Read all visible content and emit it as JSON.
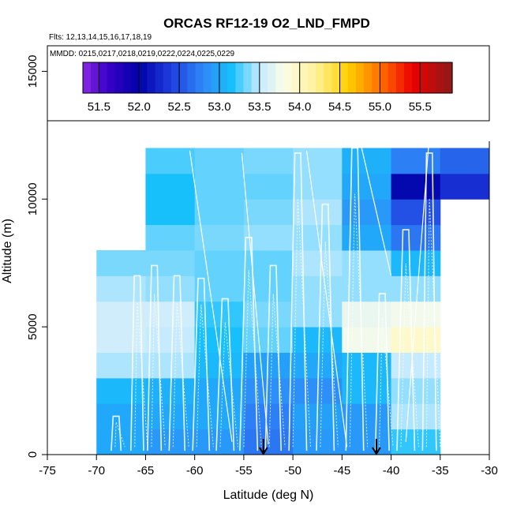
{
  "chart_data": {
    "type": "heatmap",
    "title": "ORCAS RF12-19 O2_LND_FMPD",
    "flights_note": "Flts: 12,13,14,15,16,17,18,19",
    "dates_note": "MMDD: 0215,0217,0218,0219,0222,0224,0225,0229",
    "xlabel": "Latitude (deg N)",
    "ylabel": "Altitude (m)",
    "xlim": [
      -75,
      -30
    ],
    "ylim": [
      0,
      16000
    ],
    "x_ticks": [
      -75,
      -70,
      -65,
      -60,
      -55,
      -50,
      -45,
      -40,
      -35,
      -30
    ],
    "y_ticks": [
      0,
      5000,
      10000,
      15000
    ],
    "grid": false,
    "colorbar": {
      "min": 51.3,
      "max": 55.9,
      "ticks": [
        51.5,
        52.0,
        52.5,
        53.0,
        53.5,
        54.0,
        54.5,
        55.0,
        55.5
      ],
      "tick_labels": [
        "51.5",
        "52.0",
        "52.5",
        "53.0",
        "53.5",
        "54.0",
        "54.5",
        "55.0",
        "55.5"
      ],
      "stops": [
        {
          "v": 51.3,
          "c": "#8a2be2"
        },
        {
          "v": 51.6,
          "c": "#3a00c8"
        },
        {
          "v": 52.0,
          "c": "#0000a8"
        },
        {
          "v": 52.4,
          "c": "#1f3fe0"
        },
        {
          "v": 52.8,
          "c": "#2f88f8"
        },
        {
          "v": 53.15,
          "c": "#18c0fb"
        },
        {
          "v": 53.5,
          "c": "#c6eaff"
        },
        {
          "v": 53.8,
          "c": "#fbfde8"
        },
        {
          "v": 54.2,
          "c": "#fff29a"
        },
        {
          "v": 54.6,
          "c": "#ffd000"
        },
        {
          "v": 55.0,
          "c": "#ff7000"
        },
        {
          "v": 55.4,
          "c": "#ee0000"
        },
        {
          "v": 55.9,
          "c": "#8b1a1a"
        }
      ]
    },
    "grid_cells": {
      "lat_bin_width": 5,
      "alt_bin_height": 1000,
      "cells": [
        {
          "lat": -70,
          "alt": 0,
          "v": 53.0
        },
        {
          "lat": -70,
          "alt": 1000,
          "v": 53.0
        },
        {
          "lat": -70,
          "alt": 2000,
          "v": 53.1
        },
        {
          "lat": -70,
          "alt": 3000,
          "v": 53.45
        },
        {
          "lat": -70,
          "alt": 4000,
          "v": 53.55
        },
        {
          "lat": -70,
          "alt": 5000,
          "v": 53.55
        },
        {
          "lat": -70,
          "alt": 6000,
          "v": 53.45
        },
        {
          "lat": -70,
          "alt": 7000,
          "v": 53.35
        },
        {
          "lat": -65,
          "alt": 0,
          "v": 52.9
        },
        {
          "lat": -65,
          "alt": 1000,
          "v": 53.0
        },
        {
          "lat": -65,
          "alt": 2000,
          "v": 53.05
        },
        {
          "lat": -65,
          "alt": 3000,
          "v": 53.45
        },
        {
          "lat": -65,
          "alt": 4000,
          "v": 53.5
        },
        {
          "lat": -65,
          "alt": 5000,
          "v": 53.55
        },
        {
          "lat": -65,
          "alt": 6000,
          "v": 53.4
        },
        {
          "lat": -65,
          "alt": 7000,
          "v": 53.35
        },
        {
          "lat": -65,
          "alt": 8000,
          "v": 53.3
        },
        {
          "lat": -65,
          "alt": 9000,
          "v": 53.15
        },
        {
          "lat": -65,
          "alt": 10000,
          "v": 53.15
        },
        {
          "lat": -65,
          "alt": 11000,
          "v": 53.25
        },
        {
          "lat": -60,
          "alt": 0,
          "v": 52.9
        },
        {
          "lat": -60,
          "alt": 1000,
          "v": 53.0
        },
        {
          "lat": -60,
          "alt": 2000,
          "v": 53.0
        },
        {
          "lat": -60,
          "alt": 3000,
          "v": 53.1
        },
        {
          "lat": -60,
          "alt": 4000,
          "v": 53.15
        },
        {
          "lat": -60,
          "alt": 5000,
          "v": 53.2
        },
        {
          "lat": -60,
          "alt": 6000,
          "v": 53.3
        },
        {
          "lat": -60,
          "alt": 7000,
          "v": 53.3
        },
        {
          "lat": -60,
          "alt": 8000,
          "v": 53.35
        },
        {
          "lat": -60,
          "alt": 9000,
          "v": 53.3
        },
        {
          "lat": -60,
          "alt": 10000,
          "v": 53.3
        },
        {
          "lat": -60,
          "alt": 11000,
          "v": 53.3
        },
        {
          "lat": -55,
          "alt": 0,
          "v": 52.7
        },
        {
          "lat": -55,
          "alt": 1000,
          "v": 52.75
        },
        {
          "lat": -55,
          "alt": 2000,
          "v": 52.85
        },
        {
          "lat": -55,
          "alt": 3000,
          "v": 52.95
        },
        {
          "lat": -55,
          "alt": 4000,
          "v": 53.3
        },
        {
          "lat": -55,
          "alt": 5000,
          "v": 53.35
        },
        {
          "lat": -55,
          "alt": 6000,
          "v": 53.3
        },
        {
          "lat": -55,
          "alt": 7000,
          "v": 53.3
        },
        {
          "lat": -55,
          "alt": 8000,
          "v": 53.4
        },
        {
          "lat": -55,
          "alt": 9000,
          "v": 53.35
        },
        {
          "lat": -55,
          "alt": 10000,
          "v": 53.3
        },
        {
          "lat": -55,
          "alt": 11000,
          "v": 53.35
        },
        {
          "lat": -50,
          "alt": 0,
          "v": 52.9
        },
        {
          "lat": -50,
          "alt": 1000,
          "v": 52.95
        },
        {
          "lat": -50,
          "alt": 2000,
          "v": 52.85
        },
        {
          "lat": -50,
          "alt": 3000,
          "v": 53.0
        },
        {
          "lat": -50,
          "alt": 4000,
          "v": 53.1
        },
        {
          "lat": -50,
          "alt": 5000,
          "v": 53.4
        },
        {
          "lat": -50,
          "alt": 6000,
          "v": 53.4
        },
        {
          "lat": -50,
          "alt": 7000,
          "v": 53.45
        },
        {
          "lat": -50,
          "alt": 8000,
          "v": 53.4
        },
        {
          "lat": -50,
          "alt": 9000,
          "v": 53.45
        },
        {
          "lat": -50,
          "alt": 10000,
          "v": 53.4
        },
        {
          "lat": -50,
          "alt": 11000,
          "v": 53.4
        },
        {
          "lat": -45,
          "alt": 0,
          "v": 52.9
        },
        {
          "lat": -45,
          "alt": 1000,
          "v": 52.9
        },
        {
          "lat": -45,
          "alt": 2000,
          "v": 53.1
        },
        {
          "lat": -45,
          "alt": 3000,
          "v": 53.1
        },
        {
          "lat": -45,
          "alt": 4000,
          "v": 53.75
        },
        {
          "lat": -45,
          "alt": 5000,
          "v": 53.7
        },
        {
          "lat": -45,
          "alt": 6000,
          "v": 53.4
        },
        {
          "lat": -45,
          "alt": 7000,
          "v": 53.4
        },
        {
          "lat": -45,
          "alt": 8000,
          "v": 53.0
        },
        {
          "lat": -45,
          "alt": 9000,
          "v": 52.9
        },
        {
          "lat": -45,
          "alt": 10000,
          "v": 53.0
        },
        {
          "lat": -45,
          "alt": 11000,
          "v": 53.05
        },
        {
          "lat": -40,
          "alt": 0,
          "v": 53.2
        },
        {
          "lat": -40,
          "alt": 1000,
          "v": 53.45
        },
        {
          "lat": -40,
          "alt": 2000,
          "v": 53.4
        },
        {
          "lat": -40,
          "alt": 3000,
          "v": 53.5
        },
        {
          "lat": -40,
          "alt": 4000,
          "v": 53.95
        },
        {
          "lat": -40,
          "alt": 5000,
          "v": 53.75
        },
        {
          "lat": -40,
          "alt": 6000,
          "v": 53.4
        },
        {
          "lat": -40,
          "alt": 7000,
          "v": 53.1
        },
        {
          "lat": -40,
          "alt": 8000,
          "v": 52.7
        },
        {
          "lat": -40,
          "alt": 9000,
          "v": 52.5
        },
        {
          "lat": -40,
          "alt": 10000,
          "v": 52.05
        },
        {
          "lat": -40,
          "alt": 11000,
          "v": 52.75
        },
        {
          "lat": -35,
          "alt": 10000,
          "v": 52.3
        },
        {
          "lat": -35,
          "alt": 11000,
          "v": 52.6
        }
      ]
    },
    "markers": [
      {
        "lat": -53,
        "type": "down-arrow"
      },
      {
        "lat": -41.5,
        "type": "down-arrow"
      }
    ]
  }
}
